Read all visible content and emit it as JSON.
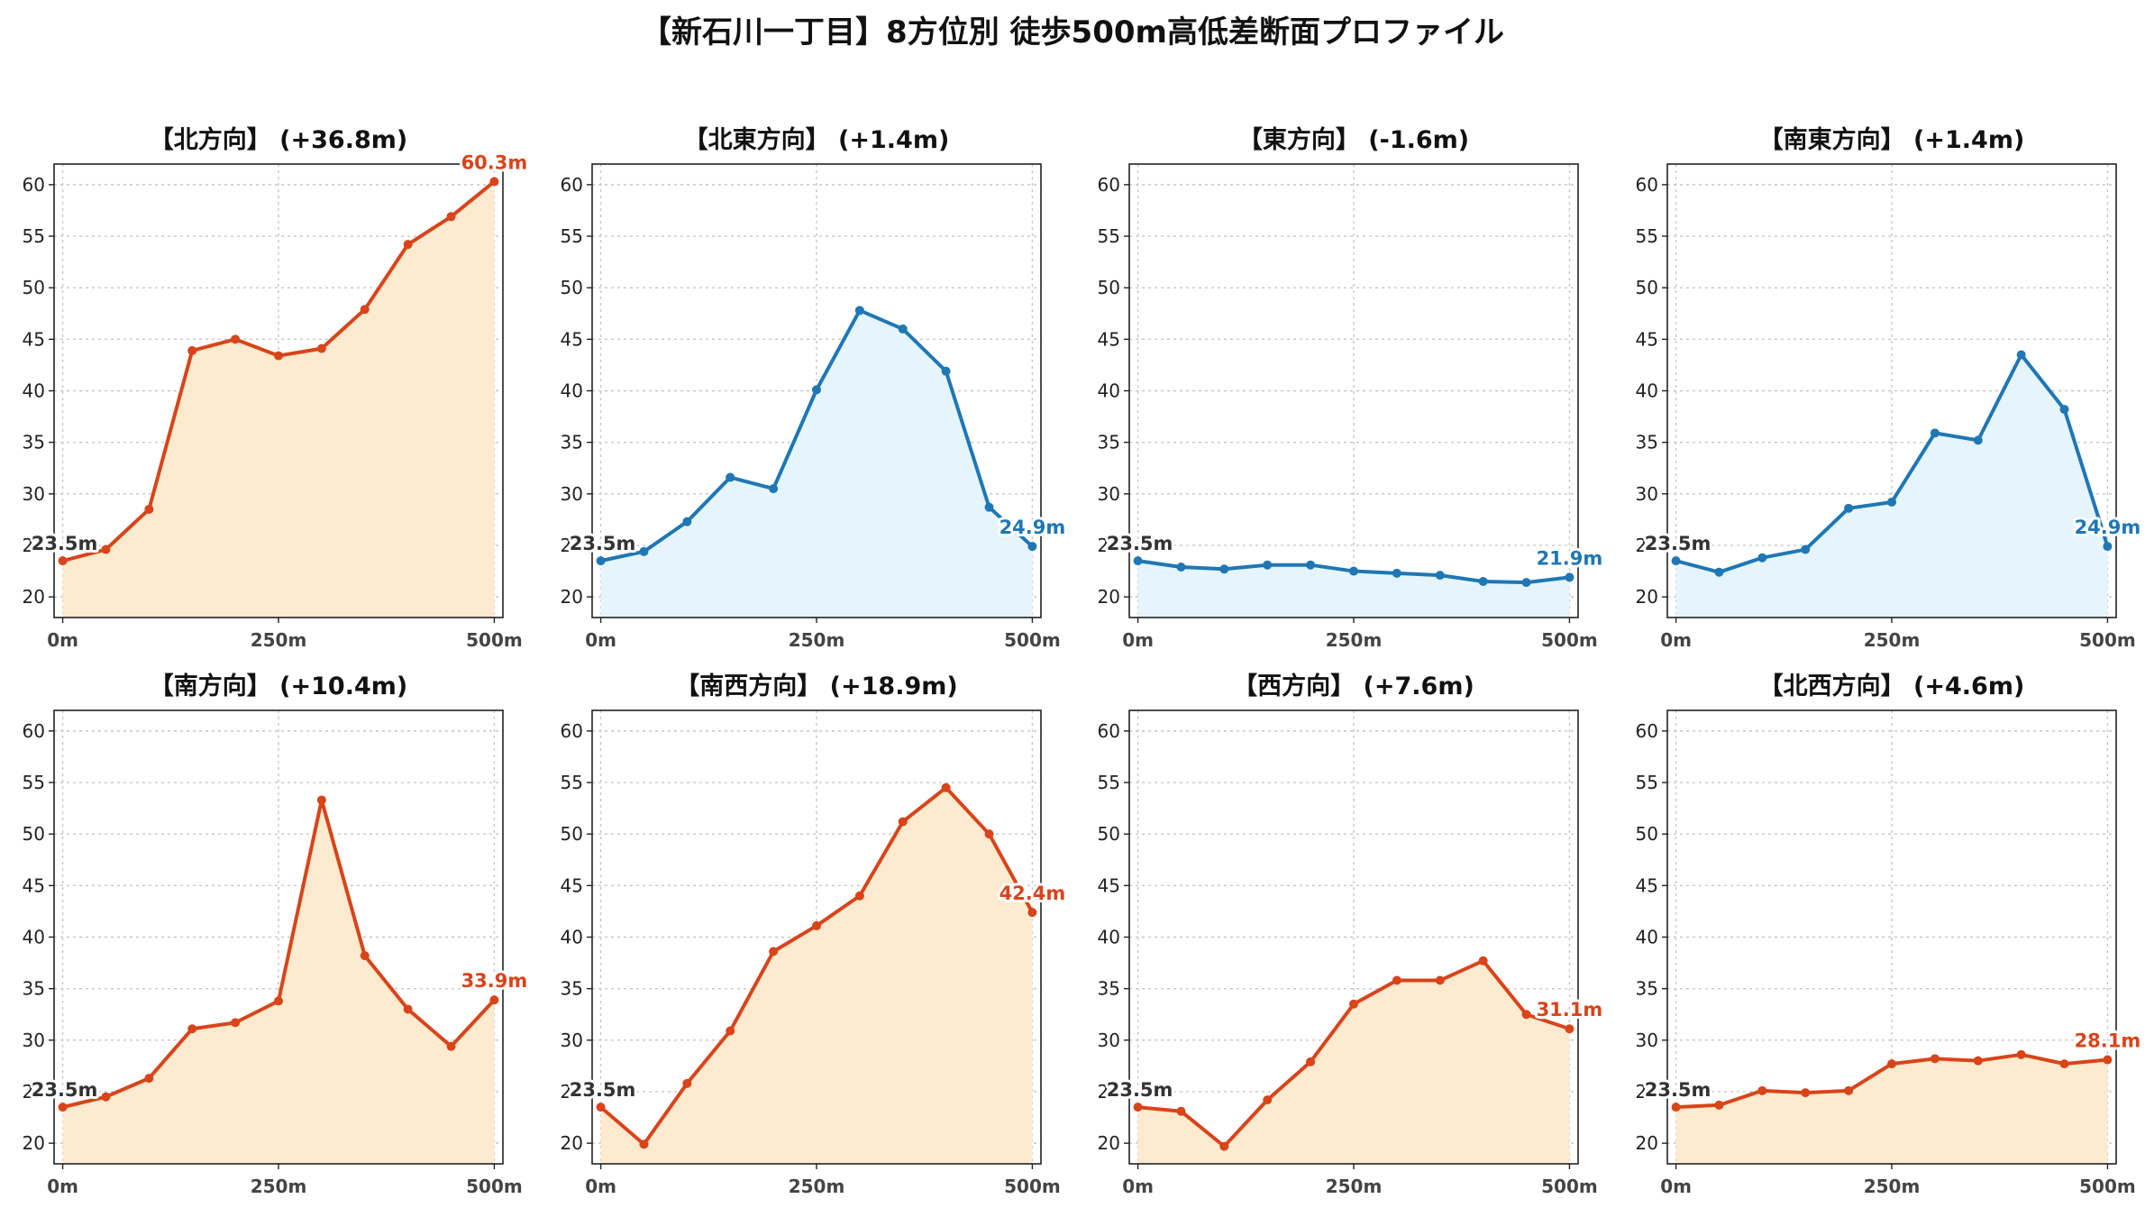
{
  "title": "【新石川一丁目】8方位別 徒歩500m高低差断面プロファイル",
  "colors": {
    "up_line": "#d9441a",
    "up_fill": "#feebcf",
    "down_line": "#1f77b4",
    "down_fill": "#e5f5fb",
    "start_label": "#333333"
  },
  "chart_data": [
    {
      "type": "area",
      "title": "【北方向】 (+36.8m)",
      "x": [
        0,
        50,
        100,
        150,
        200,
        250,
        300,
        350,
        400,
        450,
        500
      ],
      "values": [
        23.5,
        24.6,
        28.5,
        43.9,
        45.0,
        43.4,
        44.1,
        47.9,
        54.2,
        56.9,
        60.3
      ],
      "trend": "up",
      "start_label": "23.5m",
      "end_label": "60.3m",
      "xticks": [
        "0m",
        "250m",
        "500m"
      ],
      "yticks": [
        20,
        25,
        30,
        35,
        40,
        45,
        50,
        55,
        60
      ],
      "ylim": [
        18,
        62
      ],
      "xlim": [
        -10,
        510
      ],
      "grid": true
    },
    {
      "type": "area",
      "title": "【北東方向】 (+1.4m)",
      "x": [
        0,
        50,
        100,
        150,
        200,
        250,
        300,
        350,
        400,
        450,
        500
      ],
      "values": [
        23.5,
        24.4,
        27.3,
        31.6,
        30.5,
        40.1,
        47.8,
        46.0,
        41.9,
        28.7,
        24.9
      ],
      "trend": "down",
      "start_label": "23.5m",
      "end_label": "24.9m",
      "xticks": [
        "0m",
        "250m",
        "500m"
      ],
      "yticks": [
        20,
        25,
        30,
        35,
        40,
        45,
        50,
        55,
        60
      ],
      "ylim": [
        18,
        62
      ],
      "xlim": [
        -10,
        510
      ],
      "grid": true
    },
    {
      "type": "area",
      "title": "【東方向】 (-1.6m)",
      "x": [
        0,
        50,
        100,
        150,
        200,
        250,
        300,
        350,
        400,
        450,
        500
      ],
      "values": [
        23.5,
        22.9,
        22.7,
        23.1,
        23.1,
        22.5,
        22.3,
        22.1,
        21.5,
        21.4,
        21.9
      ],
      "trend": "down",
      "start_label": "23.5m",
      "end_label": "21.9m",
      "xticks": [
        "0m",
        "250m",
        "500m"
      ],
      "yticks": [
        20,
        25,
        30,
        35,
        40,
        45,
        50,
        55,
        60
      ],
      "ylim": [
        18,
        62
      ],
      "xlim": [
        -10,
        510
      ],
      "grid": true
    },
    {
      "type": "area",
      "title": "【南東方向】 (+1.4m)",
      "x": [
        0,
        50,
        100,
        150,
        200,
        250,
        300,
        350,
        400,
        450,
        500
      ],
      "values": [
        23.5,
        22.4,
        23.8,
        24.6,
        28.6,
        29.2,
        35.9,
        35.2,
        43.5,
        38.2,
        24.9
      ],
      "trend": "down",
      "start_label": "23.5m",
      "end_label": "24.9m",
      "xticks": [
        "0m",
        "250m",
        "500m"
      ],
      "yticks": [
        20,
        25,
        30,
        35,
        40,
        45,
        50,
        55,
        60
      ],
      "ylim": [
        18,
        62
      ],
      "xlim": [
        -10,
        510
      ],
      "grid": true
    },
    {
      "type": "area",
      "title": "【南方向】 (+10.4m)",
      "x": [
        0,
        50,
        100,
        150,
        200,
        250,
        300,
        350,
        400,
        450,
        500
      ],
      "values": [
        23.5,
        24.5,
        26.3,
        31.1,
        31.7,
        33.8,
        53.3,
        38.2,
        33.0,
        29.4,
        33.9
      ],
      "trend": "up",
      "start_label": "23.5m",
      "end_label": "33.9m",
      "xticks": [
        "0m",
        "250m",
        "500m"
      ],
      "yticks": [
        20,
        25,
        30,
        35,
        40,
        45,
        50,
        55,
        60
      ],
      "ylim": [
        18,
        62
      ],
      "xlim": [
        -10,
        510
      ],
      "grid": true
    },
    {
      "type": "area",
      "title": "【南西方向】 (+18.9m)",
      "x": [
        0,
        50,
        100,
        150,
        200,
        250,
        300,
        350,
        400,
        450,
        500
      ],
      "values": [
        23.5,
        19.9,
        25.8,
        30.9,
        38.6,
        41.1,
        44.0,
        51.2,
        54.5,
        50.0,
        42.4
      ],
      "trend": "up",
      "start_label": "23.5m",
      "end_label": "42.4m",
      "xticks": [
        "0m",
        "250m",
        "500m"
      ],
      "yticks": [
        20,
        25,
        30,
        35,
        40,
        45,
        50,
        55,
        60
      ],
      "ylim": [
        18,
        62
      ],
      "xlim": [
        -10,
        510
      ],
      "grid": true
    },
    {
      "type": "area",
      "title": "【西方向】 (+7.6m)",
      "x": [
        0,
        50,
        100,
        150,
        200,
        250,
        300,
        350,
        400,
        450,
        500
      ],
      "values": [
        23.5,
        23.1,
        19.7,
        24.2,
        27.9,
        33.5,
        35.8,
        35.8,
        37.7,
        32.5,
        31.1
      ],
      "trend": "up",
      "start_label": "23.5m",
      "end_label": "31.1m",
      "xticks": [
        "0m",
        "250m",
        "500m"
      ],
      "yticks": [
        20,
        25,
        30,
        35,
        40,
        45,
        50,
        55,
        60
      ],
      "ylim": [
        18,
        62
      ],
      "xlim": [
        -10,
        510
      ],
      "grid": true
    },
    {
      "type": "area",
      "title": "【北西方向】 (+4.6m)",
      "x": [
        0,
        50,
        100,
        150,
        200,
        250,
        300,
        350,
        400,
        450,
        500
      ],
      "values": [
        23.5,
        23.7,
        25.1,
        24.9,
        25.1,
        27.7,
        28.2,
        28.0,
        28.6,
        27.7,
        28.1
      ],
      "trend": "up",
      "start_label": "23.5m",
      "end_label": "28.1m",
      "xticks": [
        "0m",
        "250m",
        "500m"
      ],
      "yticks": [
        20,
        25,
        30,
        35,
        40,
        45,
        50,
        55,
        60
      ],
      "ylim": [
        18,
        62
      ],
      "xlim": [
        -10,
        510
      ],
      "grid": true
    }
  ]
}
